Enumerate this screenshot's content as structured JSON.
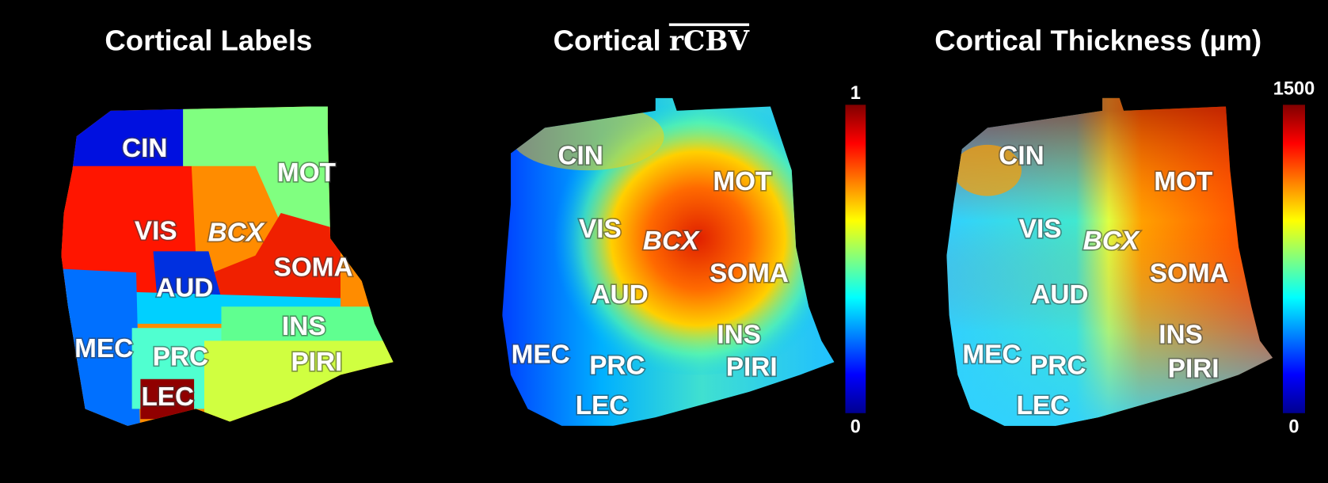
{
  "panels": [
    {
      "title": "Cortical Labels",
      "regions": [
        "CIN",
        "MOT",
        "VIS",
        "BCX",
        "SOMA",
        "AUD",
        "INS",
        "PIRI",
        "MEC",
        "PRC",
        "LEC"
      ]
    },
    {
      "title": "Cortical",
      "title_measure": "rCBV",
      "regions": [
        "CIN",
        "MOT",
        "VIS",
        "BCX",
        "SOMA",
        "AUD",
        "INS",
        "PIRI",
        "MEC",
        "PRC",
        "LEC"
      ],
      "colorbar": {
        "max": 1,
        "min": 0
      }
    },
    {
      "title": "Cortical Thickness (µm)",
      "regions": [
        "CIN",
        "MOT",
        "VIS",
        "BCX",
        "SOMA",
        "AUD",
        "INS",
        "PIRI",
        "MEC",
        "PRC",
        "LEC"
      ],
      "colorbar": {
        "max": 1500,
        "min": 0
      }
    }
  ]
}
